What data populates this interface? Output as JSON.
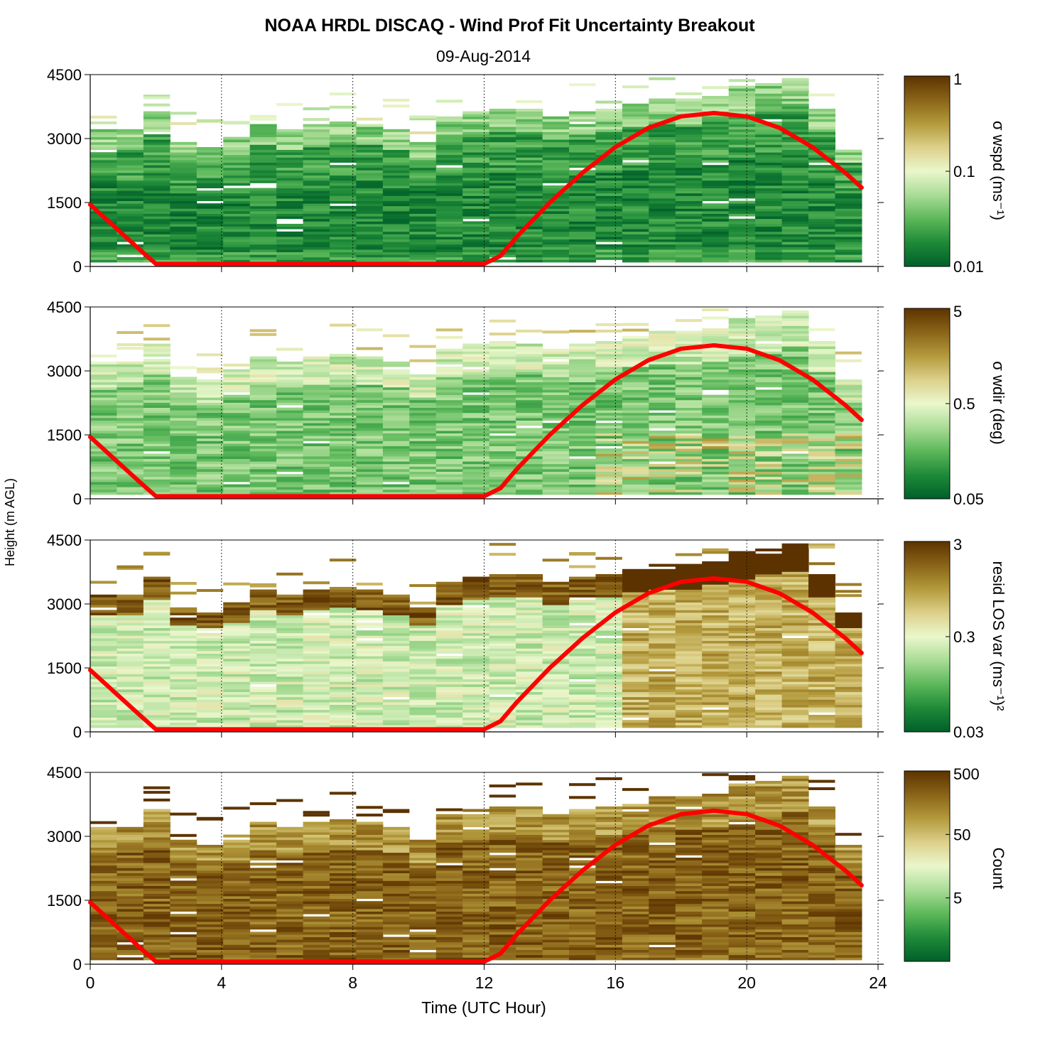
{
  "figure": {
    "title": "NOAA HRDL DISCAQ - Wind Prof Fit Uncertainty Breakout",
    "subtitle": "09-Aug-2014",
    "xlabel": "Time (UTC Hour)",
    "ylabel": "Height (m AGL)"
  },
  "colors": {
    "colormap": [
      "#00602a",
      "#1e8a38",
      "#5cb85a",
      "#a9dc96",
      "#eaf7cc",
      "#ddd08a",
      "#b39a3c",
      "#8a6418",
      "#5c3300"
    ],
    "overlay_line": "#ff0000"
  },
  "chart_data": [
    {
      "type": "heatmap",
      "panel": "sigma-wspd",
      "xlim": [
        0,
        24
      ],
      "ylim": [
        0,
        4500
      ],
      "xticks": [
        "0",
        "4",
        "8",
        "12",
        "16",
        "20",
        "24"
      ],
      "yticks": [
        "0",
        "1500",
        "3000",
        "4500"
      ],
      "colorbar": {
        "label": "σ wspd (ms⁻¹)",
        "scale": "log",
        "min": 0.01,
        "max": 1,
        "ticks": [
          "0.01",
          "0.1",
          "1"
        ]
      },
      "field_level": 0.18,
      "top_heights": [
        3200,
        3200,
        3600,
        2900,
        2800,
        3000,
        3300,
        3200,
        3300,
        3400,
        3300,
        3200,
        2900,
        3500,
        3600,
        3700,
        3700,
        3500,
        3600,
        3700,
        3800,
        3900,
        3900,
        4000,
        4200,
        4300,
        4400,
        3700,
        2800
      ]
    },
    {
      "type": "heatmap",
      "panel": "sigma-wdir",
      "xlim": [
        0,
        24
      ],
      "ylim": [
        0,
        4500
      ],
      "xticks": [
        "0",
        "4",
        "8",
        "12",
        "16",
        "20",
        "24"
      ],
      "yticks": [
        "0",
        "1500",
        "3000",
        "4500"
      ],
      "colorbar": {
        "label": "σ wdir (deg)",
        "scale": "log",
        "min": 0.05,
        "max": 5,
        "ticks": [
          "0.05",
          "0.5",
          "5"
        ]
      },
      "field_level": 0.3,
      "top_heights": [
        3200,
        3200,
        3600,
        2900,
        2800,
        3000,
        3300,
        3200,
        3300,
        3400,
        3300,
        3200,
        2900,
        3500,
        3600,
        3700,
        3700,
        3500,
        3600,
        3700,
        3800,
        3900,
        3900,
        4000,
        4200,
        4300,
        4400,
        3700,
        2800
      ]
    },
    {
      "type": "heatmap",
      "panel": "resid-los-var",
      "xlim": [
        0,
        24
      ],
      "ylim": [
        0,
        4500
      ],
      "xticks": [
        "0",
        "4",
        "8",
        "12",
        "16",
        "20",
        "24"
      ],
      "yticks": [
        "0",
        "1500",
        "3000",
        "4500"
      ],
      "colorbar": {
        "label": "resid LOS var (ms⁻¹)²",
        "scale": "log",
        "min": 0.03,
        "max": 3,
        "ticks": [
          "0.03",
          "0.3",
          "3"
        ]
      },
      "field_level": 0.45,
      "top_heights": [
        3200,
        3200,
        3600,
        2900,
        2800,
        3000,
        3300,
        3200,
        3300,
        3400,
        3300,
        3200,
        2900,
        3500,
        3600,
        3700,
        3700,
        3500,
        3600,
        3700,
        3800,
        3900,
        3900,
        4000,
        4200,
        4300,
        4400,
        3700,
        2800
      ]
    },
    {
      "type": "heatmap",
      "panel": "count",
      "xlim": [
        0,
        24
      ],
      "ylim": [
        0,
        4500
      ],
      "xticks": [
        "0",
        "4",
        "8",
        "12",
        "16",
        "20",
        "24"
      ],
      "yticks": [
        "0",
        "1500",
        "3000",
        "4500"
      ],
      "colorbar": {
        "label": "Count",
        "scale": "log",
        "min": 0.5,
        "max": 500,
        "ticks": [
          "5",
          "50",
          "500"
        ]
      },
      "field_level": 0.88,
      "top_heights": [
        3200,
        3200,
        3600,
        2900,
        2800,
        3000,
        3300,
        3200,
        3300,
        3400,
        3300,
        3200,
        2900,
        3500,
        3600,
        3700,
        3700,
        3500,
        3600,
        3700,
        3800,
        3900,
        3900,
        4000,
        4200,
        4300,
        4400,
        3700,
        2800
      ]
    },
    {
      "type": "line",
      "series_role": "boundary-layer-height-overlay",
      "x": [
        0,
        0.5,
        1,
        1.5,
        2,
        4,
        6,
        8,
        10,
        12,
        12.5,
        13,
        14,
        15,
        16,
        17,
        18,
        19,
        20,
        21,
        22,
        23,
        23.5
      ],
      "y": [
        1450,
        1100,
        750,
        400,
        60,
        60,
        60,
        60,
        60,
        60,
        250,
        700,
        1500,
        2200,
        2800,
        3250,
        3520,
        3600,
        3520,
        3250,
        2800,
        2200,
        1850
      ]
    }
  ]
}
